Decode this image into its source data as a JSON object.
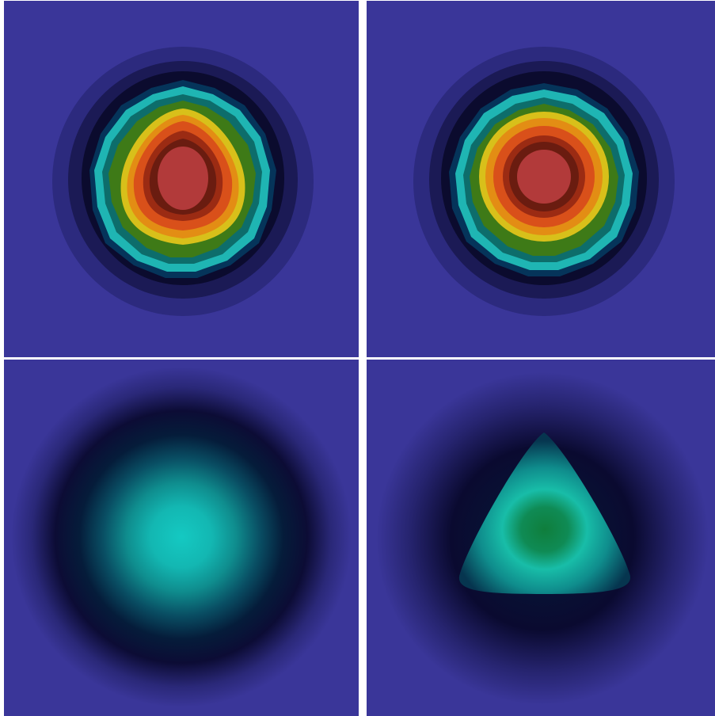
{
  "figure": {
    "background_color": "#3a3699",
    "panels": [
      {
        "id": "top-left",
        "field": "hot-blob",
        "shape": "skewed-disc",
        "colormap": "jet-dark",
        "peak_color": "#b23a3a",
        "peak_level": 1.0
      },
      {
        "id": "top-right",
        "field": "hot-blob",
        "shape": "round-disc",
        "colormap": "jet-dark",
        "peak_color": "#b23a3a",
        "peak_level": 1.0
      },
      {
        "id": "bottom-left",
        "field": "diffuse-blob",
        "shape": "soft-disc",
        "colormap": "jet-dark",
        "peak_color": "#14c9c2",
        "peak_level": 0.42
      },
      {
        "id": "bottom-right",
        "field": "diffuse-blob",
        "shape": "triangle",
        "colormap": "jet-dark",
        "peak_color": "#0f7e3c",
        "peak_level": 0.5
      }
    ]
  }
}
